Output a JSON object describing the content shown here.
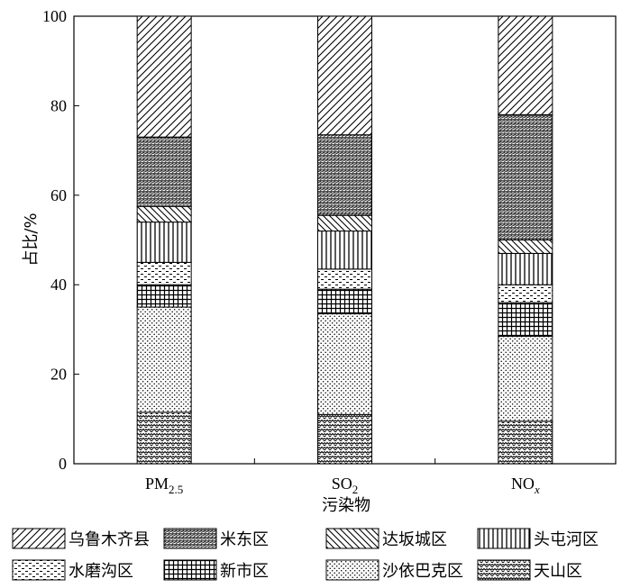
{
  "chart_data": {
    "type": "bar",
    "stacked": true,
    "title": "",
    "xlabel": "污染物",
    "ylabel": "占比/%",
    "ylim": [
      0,
      100
    ],
    "yticks": [
      "0",
      "20",
      "40",
      "60",
      "80",
      "100"
    ],
    "categories": [
      "PM2.5",
      "SO2",
      "NOx"
    ],
    "category_labels": [
      {
        "main": "PM",
        "sub": "2.5",
        "italic_sub": false
      },
      {
        "main": "SO",
        "sub": "2",
        "italic_sub": false
      },
      {
        "main": "NO",
        "sub": "x",
        "italic_sub": true
      }
    ],
    "legend_position": "bottom",
    "series": [
      {
        "name": "天山区",
        "pattern": "zigzag",
        "values": [
          11.5,
          11,
          9.5
        ]
      },
      {
        "name": "沙依巴克区",
        "pattern": "dots",
        "values": [
          23.5,
          22.5,
          19
        ]
      },
      {
        "name": "新市区",
        "pattern": "grid",
        "values": [
          5,
          5.5,
          7.5
        ]
      },
      {
        "name": "水磨沟区",
        "pattern": "dashes",
        "values": [
          5,
          4.5,
          4
        ]
      },
      {
        "name": "头屯河区",
        "pattern": "vertical",
        "values": [
          9,
          8.5,
          7
        ]
      },
      {
        "name": "达坂城区",
        "pattern": "diag-down",
        "values": [
          3.5,
          3.5,
          3
        ]
      },
      {
        "name": "米东区",
        "pattern": "hbands",
        "values": [
          15.5,
          18,
          28
        ]
      },
      {
        "name": "乌鲁木齐县",
        "pattern": "diag-up",
        "values": [
          27,
          26.5,
          22
        ]
      }
    ],
    "legend_order": [
      "乌鲁木齐县",
      "米东区",
      "达坂城区",
      "头屯河区",
      "水磨沟区",
      "新市区",
      "沙依巴克区",
      "天山区"
    ]
  }
}
